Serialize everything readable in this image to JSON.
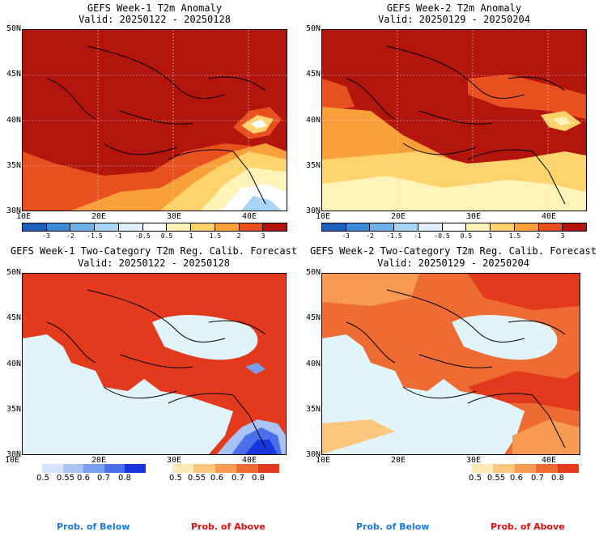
{
  "panels": [
    {
      "title": "GEFS Week-1 T2m Anomaly",
      "valid": "Valid: 20250122 - 20250128"
    },
    {
      "title": "GEFS Week-2 T2m Anomaly",
      "valid": "Valid: 20250129 - 20250204"
    },
    {
      "title": "GEFS Week-1 Two-Category T2m Reg. Calib. Forecast",
      "valid": "Valid: 20250122 - 20250128"
    },
    {
      "title": "GEFS Week-2 Two-Category T2m Reg. Calib. Forecast",
      "valid": "Valid: 20250129 - 20250204"
    }
  ],
  "lat_labels": [
    "50N",
    "45N",
    "40N",
    "35N",
    "30N"
  ],
  "lon_labels": [
    "10E",
    "20E",
    "30E",
    "40E"
  ],
  "anomaly_colorbar": {
    "ticks": [
      "-3",
      "-2",
      "-1.5",
      "-1",
      "-0.5",
      "0.5",
      "1",
      "1.5",
      "2",
      "3"
    ],
    "colors": [
      "#1f5fbf",
      "#3a8ad6",
      "#6eb0e8",
      "#a8d4f5",
      "#dff0fb",
      "#ffffff",
      "#fff3b8",
      "#ffd36b",
      "#f9a03a",
      "#e8501f",
      "#b3140c"
    ]
  },
  "prob_colorbars": {
    "ticks": [
      "0.5",
      "0.55",
      "0.6",
      "0.7",
      "0.8"
    ],
    "below_colors": [
      "#d6e4fb",
      "#a9c3f6",
      "#7b9ff0",
      "#4a6fe8",
      "#1636e0"
    ],
    "above_colors": [
      "#fde9b5",
      "#fbc77e",
      "#f79a52",
      "#ee6b34",
      "#e33a1e"
    ],
    "below_label": "Prob. of Below",
    "above_label": "Prob. of Above",
    "below_label_color": "#1a78d8",
    "above_label_color": "#e00d0d"
  }
}
